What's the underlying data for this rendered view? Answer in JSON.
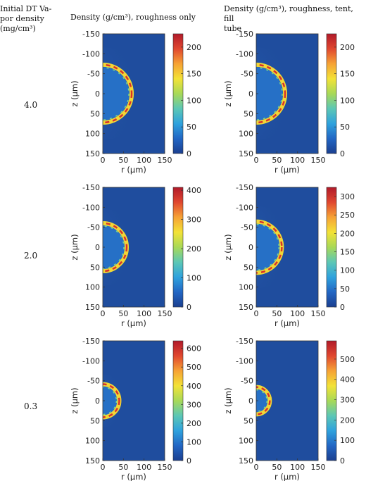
{
  "headers": {
    "col0": [
      "Initial DT Va-",
      "por density",
      "(mg/cm³)"
    ],
    "col1": "Density (g/cm³), roughness only",
    "col2": [
      "Density (g/cm³), roughness, tent, fill",
      "tube"
    ]
  },
  "rows": [
    {
      "label": "4.0"
    },
    {
      "label": "2.0"
    },
    {
      "label": "0.3"
    }
  ],
  "axis": {
    "x_label": "r (μm)",
    "y_label": "z (μm)",
    "x_ticks": [
      "0",
      "50",
      "100",
      "150"
    ],
    "y_ticks": [
      "-150",
      "-100",
      "-50",
      "0",
      "50",
      "100",
      "150"
    ]
  },
  "colors": {
    "colormap": [
      "#1b3f8f",
      "#2266c4",
      "#2fa2dd",
      "#5cc7b5",
      "#a8d957",
      "#f3e237",
      "#f6a235",
      "#e0472f",
      "#b11a2a"
    ]
  },
  "chart_data": [
    {
      "type": "heatmap",
      "row": "4.0",
      "column": "roughness only",
      "colorbar_ticks": [
        0,
        50,
        100,
        150,
        200
      ],
      "colorbar_max": 225,
      "ring_radius": 70
    },
    {
      "type": "heatmap",
      "row": "4.0",
      "column": "roughness, tent, fill tube",
      "colorbar_ticks": [
        0,
        50,
        100,
        150,
        200
      ],
      "colorbar_max": 225,
      "ring_radius": 70
    },
    {
      "type": "heatmap",
      "row": "2.0",
      "column": "roughness only",
      "colorbar_ticks": [
        0,
        100,
        200,
        300,
        400
      ],
      "colorbar_max": 410,
      "ring_radius": 58
    },
    {
      "type": "heatmap",
      "row": "2.0",
      "column": "roughness, tent, fill tube",
      "colorbar_ticks": [
        0,
        50,
        100,
        150,
        200,
        250,
        300
      ],
      "colorbar_max": 325,
      "ring_radius": 62
    },
    {
      "type": "heatmap",
      "row": "0.3",
      "column": "roughness only",
      "colorbar_ticks": [
        0,
        100,
        200,
        300,
        400,
        500,
        600
      ],
      "colorbar_max": 640,
      "ring_radius": 40
    },
    {
      "type": "heatmap",
      "row": "0.3",
      "column": "roughness, tent, fill tube",
      "colorbar_ticks": [
        0,
        100,
        200,
        300,
        400,
        500
      ],
      "colorbar_max": 590,
      "ring_radius": 33
    }
  ]
}
